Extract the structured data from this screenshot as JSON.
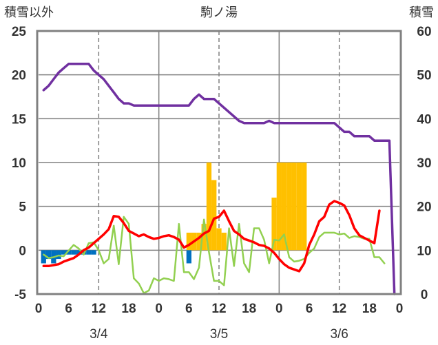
{
  "chart_data": {
    "type": "line",
    "title": "駒ノ湯",
    "left_axis_label": "積雪以外",
    "right_axis_label": "積雪",
    "left_ylim": [
      -5,
      25
    ],
    "right_ylim": [
      0,
      60
    ],
    "left_ticks": [
      "25",
      "20",
      "15",
      "10",
      "5",
      "0",
      "-5"
    ],
    "right_ticks": [
      "60",
      "50",
      "40",
      "30",
      "20",
      "10",
      "0"
    ],
    "x_tick_labels": [
      "0",
      "6",
      "12",
      "18",
      "0",
      "6",
      "12",
      "18",
      "0",
      "6",
      "12",
      "18",
      "0"
    ],
    "date_labels": [
      {
        "label": "3/4",
        "hour": 12
      },
      {
        "label": "3/5",
        "hour": 36
      },
      {
        "label": "3/6",
        "hour": 60
      }
    ],
    "xlim": [
      0,
      72
    ],
    "colors": {
      "snow_depth": "#7030a0",
      "temperature": "#ff0000",
      "other": "#92d050",
      "precip": "#ffc000",
      "snowfall": "#0070c0",
      "grid": "#808080",
      "frame": "#808080"
    },
    "snow_depth": [
      [
        1,
        46.5
      ],
      [
        2,
        47.5
      ],
      [
        3,
        49
      ],
      [
        4,
        50.5
      ],
      [
        5,
        51.5
      ],
      [
        6,
        52.5
      ],
      [
        7,
        52.5
      ],
      [
        8,
        52.5
      ],
      [
        9,
        52.5
      ],
      [
        10,
        52.5
      ],
      [
        11,
        51
      ],
      [
        12,
        50
      ],
      [
        13,
        49
      ],
      [
        14,
        47.5
      ],
      [
        15,
        46
      ],
      [
        16,
        44.5
      ],
      [
        17,
        43.5
      ],
      [
        18,
        43.5
      ],
      [
        19,
        43
      ],
      [
        20,
        43
      ],
      [
        21,
        43
      ],
      [
        22,
        43
      ],
      [
        23,
        43
      ],
      [
        24,
        43
      ],
      [
        25,
        43
      ],
      [
        26,
        43
      ],
      [
        27,
        43
      ],
      [
        28,
        43
      ],
      [
        29,
        43
      ],
      [
        30,
        43
      ],
      [
        31,
        44.5
      ],
      [
        32,
        45.5
      ],
      [
        33,
        44.5
      ],
      [
        34,
        44.5
      ],
      [
        35,
        44.5
      ],
      [
        36,
        43.5
      ],
      [
        37,
        42.5
      ],
      [
        38,
        41.5
      ],
      [
        39,
        40.5
      ],
      [
        40,
        39.5
      ],
      [
        41,
        39
      ],
      [
        42,
        39
      ],
      [
        43,
        39
      ],
      [
        44,
        39
      ],
      [
        45,
        39
      ],
      [
        46,
        39.5
      ],
      [
        47,
        39
      ],
      [
        48,
        39
      ],
      [
        49,
        39
      ],
      [
        50,
        39
      ],
      [
        51,
        39
      ],
      [
        52,
        39
      ],
      [
        53,
        39
      ],
      [
        54,
        39
      ],
      [
        55,
        39
      ],
      [
        56,
        39
      ],
      [
        57,
        39
      ],
      [
        58,
        39
      ],
      [
        59,
        39
      ],
      [
        60,
        38
      ],
      [
        61,
        37
      ],
      [
        62,
        37
      ],
      [
        63,
        36
      ],
      [
        64,
        36
      ],
      [
        65,
        36
      ],
      [
        66,
        36
      ],
      [
        67,
        35
      ],
      [
        68,
        35
      ],
      [
        69,
        35
      ],
      [
        70,
        35
      ],
      [
        71,
        0
      ]
    ],
    "temperature": [
      [
        1,
        -1.8
      ],
      [
        2,
        -1.8
      ],
      [
        3,
        -1.7
      ],
      [
        4,
        -1.6
      ],
      [
        5,
        -1.3
      ],
      [
        6,
        -1.1
      ],
      [
        7,
        -0.9
      ],
      [
        8,
        -0.5
      ],
      [
        9,
        0
      ],
      [
        10,
        0.3
      ],
      [
        11,
        0.8
      ],
      [
        12,
        1.3
      ],
      [
        13,
        1.8
      ],
      [
        14,
        2.4
      ],
      [
        15,
        3.9
      ],
      [
        16,
        3.8
      ],
      [
        17,
        3.1
      ],
      [
        18,
        2.2
      ],
      [
        19,
        1.9
      ],
      [
        20,
        1.6
      ],
      [
        21,
        1.8
      ],
      [
        22,
        1.5
      ],
      [
        23,
        1.3
      ],
      [
        24,
        1.4
      ],
      [
        25,
        1.6
      ],
      [
        26,
        1.7
      ],
      [
        27,
        1.5
      ],
      [
        28,
        1.2
      ],
      [
        29,
        0.3
      ],
      [
        30,
        0.6
      ],
      [
        31,
        1
      ],
      [
        32,
        1.4
      ],
      [
        33,
        1.9
      ],
      [
        34,
        2.2
      ],
      [
        35,
        3.6
      ],
      [
        36,
        3.8
      ],
      [
        37,
        4.5
      ],
      [
        38,
        3.3
      ],
      [
        39,
        2.2
      ],
      [
        40,
        1.8
      ],
      [
        41,
        1.3
      ],
      [
        42,
        1.1
      ],
      [
        43,
        0.9
      ],
      [
        44,
        0.6
      ],
      [
        45,
        0.5
      ],
      [
        46,
        0.2
      ],
      [
        47,
        -0.3
      ],
      [
        48,
        -1
      ],
      [
        49,
        -1.6
      ],
      [
        50,
        -2
      ],
      [
        51,
        -2.2
      ],
      [
        52,
        -2.4
      ],
      [
        53,
        -1.5
      ],
      [
        54,
        0.6
      ],
      [
        55,
        1.8
      ],
      [
        56,
        3.3
      ],
      [
        57,
        3.8
      ],
      [
        58,
        5.2
      ],
      [
        59,
        5.6
      ],
      [
        60,
        5.4
      ],
      [
        61,
        5.1
      ],
      [
        62,
        4
      ],
      [
        63,
        2.5
      ],
      [
        64,
        1.7
      ],
      [
        65,
        1.4
      ],
      [
        66,
        1.1
      ],
      [
        67,
        0.8
      ],
      [
        68,
        4.5
      ]
    ],
    "other": [
      [
        1,
        -0.5
      ],
      [
        2,
        -0.9
      ],
      [
        3,
        -0.8
      ],
      [
        4,
        -0.6
      ],
      [
        5,
        -0.7
      ],
      [
        7,
        0.6
      ],
      [
        8,
        0.2
      ],
      [
        9,
        -0.5
      ],
      [
        10,
        0.8
      ],
      [
        11,
        0.9
      ],
      [
        12,
        0
      ],
      [
        13,
        -1.5
      ],
      [
        14,
        -1
      ],
      [
        15,
        2.8
      ],
      [
        16,
        -1.6
      ],
      [
        17,
        3.8
      ],
      [
        18,
        3
      ],
      [
        19,
        -3.2
      ],
      [
        20,
        -3.8
      ],
      [
        21,
        -4.9
      ],
      [
        22,
        -4.6
      ],
      [
        23,
        -3.2
      ],
      [
        24,
        -3.5
      ],
      [
        25,
        -3.2
      ],
      [
        26,
        -3.3
      ],
      [
        27,
        -3.5
      ],
      [
        28,
        3
      ],
      [
        29,
        -2.5
      ],
      [
        30,
        -2.5
      ],
      [
        31,
        -3.3
      ],
      [
        32,
        -2
      ],
      [
        33,
        3.5
      ],
      [
        34,
        -0.2
      ],
      [
        35,
        -3.5
      ],
      [
        36,
        -3.5
      ],
      [
        37,
        -4
      ],
      [
        38,
        2.5
      ],
      [
        39,
        -1.8
      ],
      [
        40,
        3
      ],
      [
        41,
        -1.5
      ],
      [
        42,
        -2.5
      ],
      [
        43,
        2.5
      ],
      [
        44,
        2.5
      ],
      [
        45,
        1.2
      ],
      [
        46,
        -1.5
      ],
      [
        47,
        1.2
      ],
      [
        48,
        1.1
      ],
      [
        49,
        1.8
      ],
      [
        50,
        -0.8
      ],
      [
        51,
        -1.3
      ],
      [
        52,
        -1.2
      ],
      [
        53,
        -1
      ],
      [
        54,
        -0.3
      ],
      [
        55,
        0.2
      ],
      [
        56,
        1.5
      ],
      [
        57,
        2
      ],
      [
        58,
        2
      ],
      [
        59,
        2
      ],
      [
        60,
        1.8
      ],
      [
        61,
        1.9
      ],
      [
        62,
        1.4
      ],
      [
        63,
        1.6
      ],
      [
        64,
        1.5
      ],
      [
        65,
        1.3
      ],
      [
        66,
        1.3
      ],
      [
        67,
        -0.8
      ],
      [
        68,
        -0.8
      ],
      [
        69,
        -1.5
      ]
    ],
    "precip": [
      [
        30,
        2
      ],
      [
        31,
        2
      ],
      [
        32,
        2
      ],
      [
        33,
        3
      ],
      [
        34,
        10
      ],
      [
        35,
        8
      ],
      [
        36,
        2.5
      ],
      [
        37,
        2
      ],
      [
        47,
        6
      ],
      [
        48,
        10
      ],
      [
        49,
        10
      ],
      [
        50,
        10
      ],
      [
        51,
        10
      ],
      [
        52,
        10
      ],
      [
        53,
        10
      ]
    ],
    "snowfall": [
      [
        1,
        -1.5
      ],
      [
        2,
        -1
      ],
      [
        3,
        -1.5
      ],
      [
        4,
        -1
      ],
      [
        5,
        -0.5
      ],
      [
        6,
        -0.5
      ],
      [
        7,
        -0.5
      ],
      [
        8,
        -0.5
      ],
      [
        9,
        -0.5
      ],
      [
        10,
        -0.5
      ],
      [
        11,
        -0.5
      ],
      [
        30,
        -1.5
      ]
    ]
  }
}
